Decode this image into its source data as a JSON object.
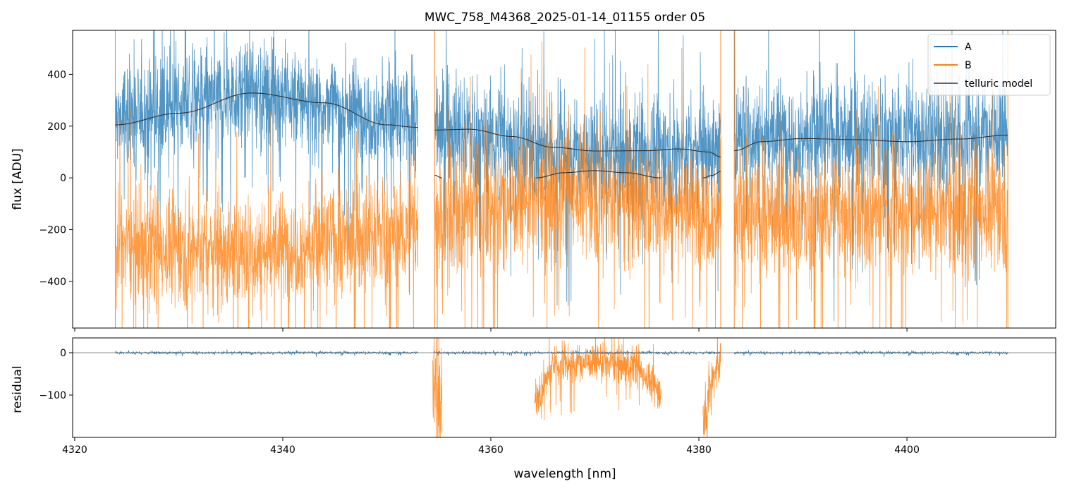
{
  "chart_data": {
    "type": "line",
    "title": "MWC_758_M4368_2025-01-14_01155  order 05",
    "xlabel": "wavelength [nm]",
    "colors": {
      "A": "#1f77b4",
      "B": "#ff7f0e",
      "telluric": "#333333",
      "zero": "#666666"
    },
    "top_panel": {
      "ylabel": "flux [ADU]",
      "xlim": [
        4319.8,
        4414.3
      ],
      "ylim": [
        -580,
        570
      ],
      "yticks": [
        400,
        200,
        0,
        -200,
        -400
      ],
      "ytick_labels": [
        "400",
        "200",
        "0",
        "−200",
        "−400"
      ],
      "legend": {
        "position": "top-right",
        "entries": [
          "A",
          "B",
          "telluric model"
        ]
      },
      "series": [
        {
          "name": "A",
          "style": "noisy",
          "segments": [
            {
              "x0": 4323.9,
              "x1": 4353.0,
              "center": [
                [
                  4323.9,
                  230
                ],
                [
                  4337,
                  340
                ],
                [
                  4353.0,
                  210
                ]
              ],
              "amp": 140
            },
            {
              "x0": 4354.6,
              "x1": 4382.1,
              "center": [
                [
                  4354.6,
                  200
                ],
                [
                  4368,
                  90
                ],
                [
                  4382.1,
                  110
                ]
              ],
              "amp": 150
            },
            {
              "x0": 4383.4,
              "x1": 4409.7,
              "center": [
                [
                  4383.4,
                  170
                ],
                [
                  4396,
                  160
                ],
                [
                  4409.7,
                  180
                ]
              ],
              "amp": 150
            }
          ]
        },
        {
          "name": "B",
          "style": "noisy",
          "segments": [
            {
              "x0": 4323.9,
              "x1": 4353.0,
              "center": [
                [
                  4323.9,
                  -250
                ],
                [
                  4337,
                  -290
                ],
                [
                  4353.0,
                  -200
                ]
              ],
              "amp": 150
            },
            {
              "x0": 4354.6,
              "x1": 4382.1,
              "center": [
                [
                  4354.6,
                  -150
                ],
                [
                  4368,
                  -40
                ],
                [
                  4382.1,
                  -130
                ]
              ],
              "amp": 170
            },
            {
              "x0": 4383.4,
              "x1": 4409.7,
              "center": [
                [
                  4383.4,
                  -150
                ],
                [
                  4396,
                  -130
                ],
                [
                  4409.7,
                  -110
                ]
              ],
              "amp": 160
            }
          ]
        },
        {
          "name": "telluric model",
          "style": "smooth",
          "segments": [
            {
              "x": [
                4323.9,
                4330,
                4337,
                4344,
                4350,
                4353.0
              ],
              "y": [
                205,
                250,
                328,
                290,
                205,
                195
              ]
            },
            {
              "x": [
                4354.6,
                4358,
                4362,
                4366,
                4370,
                4375,
                4378,
                4381,
                4382.1
              ],
              "y": [
                185,
                188,
                160,
                118,
                104,
                105,
                112,
                100,
                80
              ]
            },
            {
              "x": [
                4354.6,
                4355.3
              ],
              "y": [
                10,
                0
              ]
            },
            {
              "x": [
                4364.3,
                4367,
                4370,
                4373,
                4376.4
              ],
              "y": [
                0,
                20,
                28,
                20,
                0
              ]
            },
            {
              "x": [
                4380.4,
                4381.3,
                4382.1
              ],
              "y": [
                0,
                10,
                25
              ]
            },
            {
              "x": [
                4383.4,
                4386,
                4390,
                4395,
                4400,
                4405,
                4409.7
              ],
              "y": [
                105,
                140,
                152,
                148,
                140,
                150,
                165
              ]
            }
          ]
        }
      ]
    },
    "bottom_panel": {
      "ylabel": "residual",
      "xlim": [
        4319.8,
        4414.3
      ],
      "ylim": [
        -200,
        35
      ],
      "yticks": [
        0,
        -100
      ],
      "ytick_labels": [
        "0",
        "−100"
      ],
      "series": [
        {
          "name": "A",
          "segments": [
            {
              "x0": 4323.9,
              "x1": 4353.0,
              "level": 0,
              "amp": 2
            },
            {
              "x0": 4354.6,
              "x1": 4382.1,
              "level": 0,
              "amp": 2
            },
            {
              "x0": 4383.4,
              "x1": 4409.7,
              "level": 0,
              "amp": 2
            }
          ]
        },
        {
          "name": "B",
          "segments": [
            {
              "x0": 4354.4,
              "x1": 4355.3,
              "center": [
                [
                  4354.4,
                  -60
                ],
                [
                  4355.3,
                  -120
                ]
              ],
              "amp": 90
            },
            {
              "x0": 4364.2,
              "x1": 4376.4,
              "center": [
                [
                  4364.2,
                  -120
                ],
                [
                  4366,
                  -30
                ],
                [
                  4370,
                  -20
                ],
                [
                  4374,
                  -30
                ],
                [
                  4376.4,
                  -100
                ]
              ],
              "amp": 30
            },
            {
              "x0": 4380.4,
              "x1": 4382.1,
              "center": [
                [
                  4380.4,
                  -150
                ],
                [
                  4381.2,
                  -70
                ],
                [
                  4382.1,
                  -10
                ]
              ],
              "amp": 40
            }
          ]
        }
      ]
    },
    "xticks": [
      4320,
      4340,
      4360,
      4380,
      4400
    ],
    "xtick_labels": [
      "4320",
      "4340",
      "4360",
      "4380",
      "4400"
    ]
  }
}
